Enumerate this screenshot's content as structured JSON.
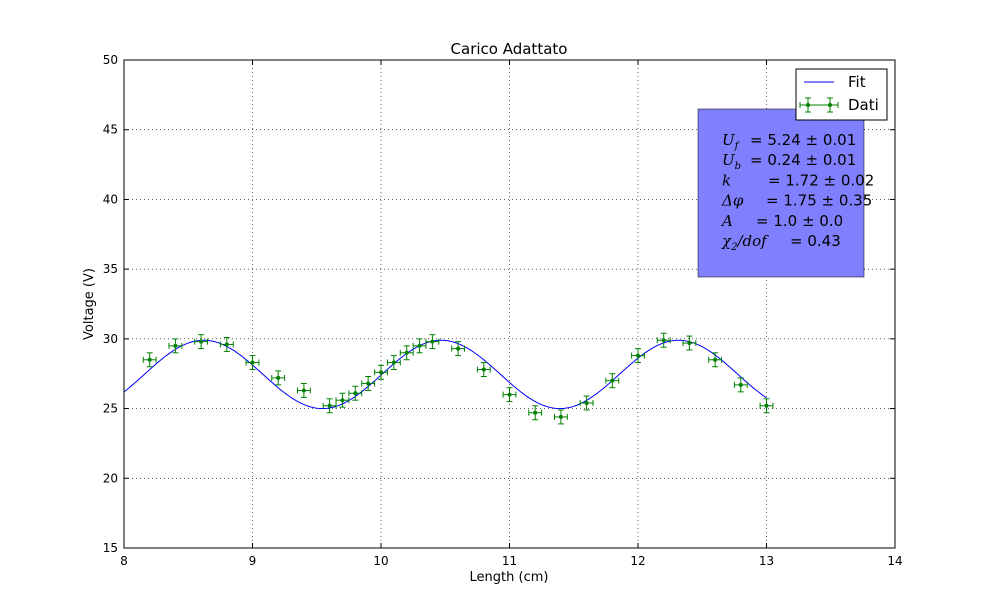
{
  "chart_data": {
    "type": "scatter",
    "title": "Carico Adattato",
    "xlabel": "Length (cm)",
    "ylabel": "Voltage (V)",
    "xlim": [
      8,
      14
    ],
    "ylim": [
      15,
      50
    ],
    "xticks": [
      "8",
      "9",
      "10",
      "11",
      "12",
      "13",
      "14"
    ],
    "yticks": [
      "15",
      "20",
      "25",
      "30",
      "35",
      "40",
      "45",
      "50"
    ],
    "grid": true,
    "legend_position": "top-right",
    "colors": {
      "fit": "#0000ff",
      "data": "#008000",
      "stats_box": "#8080ff"
    },
    "series": [
      {
        "name": "Fit",
        "kind": "line",
        "model": {
          "offset": 27.45,
          "amplitude": 2.45,
          "k": 3.4,
          "x_peak": 8.62
        },
        "x_range": [
          8,
          13
        ]
      },
      {
        "name": "Dati",
        "kind": "errorbar",
        "x_err": 0.05,
        "y_err": 0.5,
        "points": [
          [
            8.2,
            28.5
          ],
          [
            8.4,
            29.5
          ],
          [
            8.6,
            29.8
          ],
          [
            8.8,
            29.6
          ],
          [
            9.0,
            28.3
          ],
          [
            9.2,
            27.2
          ],
          [
            9.4,
            26.3
          ],
          [
            9.6,
            25.2
          ],
          [
            9.7,
            25.6
          ],
          [
            9.8,
            26.1
          ],
          [
            9.9,
            26.8
          ],
          [
            10.0,
            27.6
          ],
          [
            10.1,
            28.3
          ],
          [
            10.2,
            29.0
          ],
          [
            10.3,
            29.5
          ],
          [
            10.4,
            29.8
          ],
          [
            10.6,
            29.3
          ],
          [
            10.8,
            27.8
          ],
          [
            11.0,
            26.0
          ],
          [
            11.2,
            24.7
          ],
          [
            11.4,
            24.4
          ],
          [
            11.6,
            25.4
          ],
          [
            11.8,
            27.0
          ],
          [
            12.0,
            28.8
          ],
          [
            12.2,
            29.9
          ],
          [
            12.4,
            29.7
          ],
          [
            12.6,
            28.5
          ],
          [
            12.8,
            26.7
          ],
          [
            13.0,
            25.2
          ]
        ]
      }
    ],
    "stats_box": [
      {
        "symbol": "U",
        "sub": "f",
        "text": "= 5.24 ± 0.01"
      },
      {
        "symbol": "U",
        "sub": "b",
        "text": "= 0.24 ± 0.01"
      },
      {
        "symbol": "k",
        "sub": "",
        "text": "= 1.72 ± 0.02"
      },
      {
        "symbol": "Δφ",
        "sub": "",
        "text": "= 1.75 ± 0.35"
      },
      {
        "symbol": "A",
        "sub": "",
        "text": "= 1.0 ± 0.0"
      },
      {
        "symbol": "χ",
        "sub": "2",
        "suffix": "/dof",
        "text": "= 0.43"
      }
    ]
  }
}
